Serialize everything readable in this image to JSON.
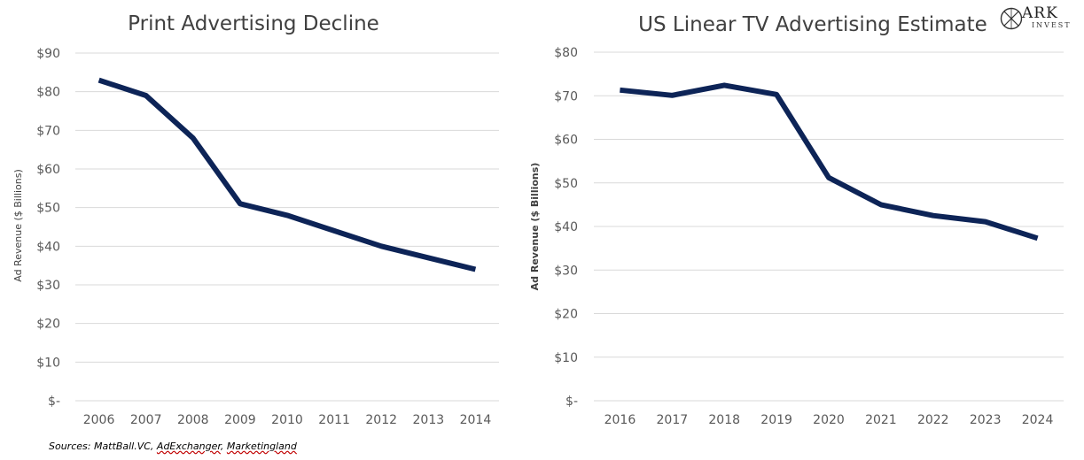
{
  "chart_data": [
    {
      "type": "line",
      "title": "Print Advertising Decline",
      "ylabel": "Ad Revenue ($ Billions)",
      "xlabel": "",
      "categories": [
        "2006",
        "2007",
        "2008",
        "2009",
        "2010",
        "2011",
        "2012",
        "2013",
        "2014"
      ],
      "values": [
        83,
        79,
        68,
        51,
        48,
        44,
        40,
        37,
        34
      ],
      "ylim": [
        0,
        90
      ],
      "yticks": [
        0,
        10,
        20,
        30,
        40,
        50,
        60,
        70,
        80,
        90
      ],
      "ytick_labels": [
        "$-",
        "$10",
        "$20",
        "$30",
        "$40",
        "$50",
        "$60",
        "$70",
        "$80",
        "$90"
      ],
      "grid": true,
      "color": "#0d2457"
    },
    {
      "type": "line",
      "title": "US Linear TV Advertising Estimate",
      "ylabel": "Ad Revenue ($ Billions)",
      "xlabel": "",
      "categories": [
        "2016",
        "2017",
        "2018",
        "2019",
        "2020",
        "2021",
        "2022",
        "2023",
        "2024"
      ],
      "values": [
        71.3,
        70.1,
        72.4,
        70.3,
        51.2,
        45.0,
        42.5,
        41.1,
        37.3
      ],
      "ylim": [
        0,
        80
      ],
      "yticks": [
        0,
        10,
        20,
        30,
        40,
        50,
        60,
        70,
        80
      ],
      "ytick_labels": [
        "$-",
        "$10",
        "$20",
        "$30",
        "$40",
        "$50",
        "$60",
        "$70",
        "$80"
      ],
      "grid": true,
      "color": "#0d2457"
    }
  ],
  "source_note": {
    "prefix": "Sources: MattBall.VC, ",
    "source_2": "AdExchanger",
    "separator": ", ",
    "source_3": "Marketingland"
  },
  "logo": {
    "word": "ARK",
    "sub": "INVEST",
    "icon": "ark-logo-icon"
  }
}
